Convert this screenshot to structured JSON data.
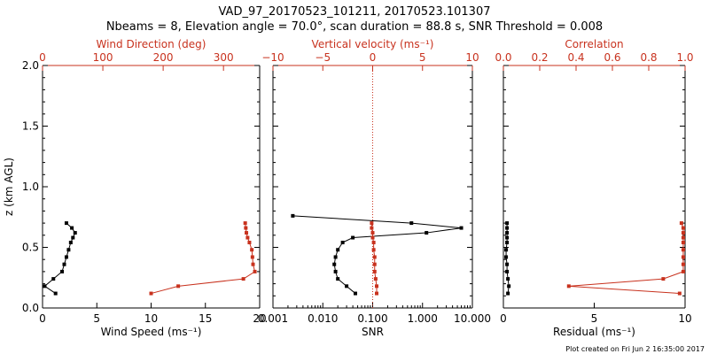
{
  "header": {
    "title": "VAD_97_20170523_101211, 20170523.101307",
    "subtitle": "Nbeams = 8, Elevation angle = 70.0°, scan duration = 88.8 s, SNR Threshold = 0.008"
  },
  "footer": {
    "credit": "Plot created on Fri Jun  2 16:35:00 2017"
  },
  "colors": {
    "black": "#000000",
    "red": "#c8321e",
    "dotted_red": "#c8321e"
  },
  "chart_data": [
    {
      "type": "line",
      "panel": "wind",
      "ylabel": "z (km AGL)",
      "yticks": [
        "0.0",
        "0.5",
        "1.0",
        "1.5",
        "2.0"
      ],
      "ylim": [
        0,
        2.0
      ],
      "bottom_axis": {
        "label": "Wind Speed (ms⁻¹)",
        "range": [
          0,
          20
        ],
        "ticks": [
          "0",
          "5",
          "10",
          "15",
          "20"
        ]
      },
      "top_axis": {
        "label": "Wind Direction (deg)",
        "range": [
          0,
          360
        ],
        "ticks": [
          "0",
          "100",
          "200",
          "300"
        ]
      },
      "series": [
        {
          "axis": "bottom",
          "color": "#000000",
          "x": [
            1.2,
            0.2,
            1.0,
            1.8,
            2.0,
            2.2,
            2.4,
            2.6,
            2.8,
            3.0,
            2.7,
            2.2
          ],
          "y": [
            0.12,
            0.18,
            0.24,
            0.3,
            0.36,
            0.42,
            0.48,
            0.54,
            0.58,
            0.62,
            0.66,
            0.7
          ]
        },
        {
          "axis": "top",
          "color": "#c8321e",
          "x": [
            180,
            225,
            333,
            352,
            349,
            348,
            347,
            343,
            340,
            338,
            337,
            336
          ],
          "y": [
            0.12,
            0.18,
            0.24,
            0.3,
            0.36,
            0.42,
            0.48,
            0.54,
            0.58,
            0.62,
            0.66,
            0.7
          ]
        }
      ]
    },
    {
      "type": "line",
      "panel": "snr",
      "bottom_axis": {
        "label": "SNR",
        "scale": "log",
        "range": [
          0.001,
          10
        ],
        "ticks": [
          "0.001",
          "0.010",
          "0.100",
          "1.000",
          "10.000"
        ]
      },
      "top_axis": {
        "label": "Vertical velocity (ms⁻¹)",
        "range": [
          -10,
          10
        ],
        "ticks": [
          "−10",
          "−5",
          "0",
          "5",
          "10"
        ],
        "zero_line": "dotted"
      },
      "series": [
        {
          "axis": "bottom",
          "color": "#000000",
          "x": [
            0.045,
            0.03,
            0.02,
            0.018,
            0.017,
            0.018,
            0.02,
            0.025,
            0.04,
            1.2,
            6.0,
            0.6,
            0.0025
          ],
          "y": [
            0.12,
            0.18,
            0.24,
            0.3,
            0.36,
            0.42,
            0.48,
            0.54,
            0.58,
            0.62,
            0.66,
            0.7,
            0.76
          ]
        },
        {
          "axis": "top",
          "color": "#c8321e",
          "x": [
            0.4,
            0.4,
            0.3,
            0.2,
            0.2,
            0.2,
            0.1,
            0.1,
            0.0,
            0.0,
            -0.1,
            -0.1
          ],
          "y": [
            0.12,
            0.18,
            0.24,
            0.3,
            0.36,
            0.42,
            0.48,
            0.54,
            0.58,
            0.62,
            0.66,
            0.7
          ]
        }
      ]
    },
    {
      "type": "line",
      "panel": "correlation",
      "bottom_axis": {
        "label": "Residual (ms⁻¹)",
        "range": [
          0,
          10
        ],
        "ticks": [
          "0",
          "5",
          "10"
        ]
      },
      "top_axis": {
        "label": "Correlation",
        "range": [
          0,
          1.0
        ],
        "ticks": [
          "0.0",
          "0.2",
          "0.4",
          "0.6",
          "0.8",
          "1.0"
        ]
      },
      "series": [
        {
          "axis": "bottom",
          "color": "#000000",
          "x": [
            0.25,
            0.3,
            0.25,
            0.2,
            0.2,
            0.15,
            0.15,
            0.2,
            0.2,
            0.2,
            0.2,
            0.2
          ],
          "y": [
            0.12,
            0.18,
            0.24,
            0.3,
            0.36,
            0.42,
            0.48,
            0.54,
            0.58,
            0.62,
            0.66,
            0.7
          ]
        },
        {
          "axis": "top",
          "color": "#c8321e",
          "x": [
            0.97,
            0.36,
            0.88,
            0.99,
            0.99,
            0.99,
            0.99,
            0.99,
            0.99,
            0.99,
            0.99,
            0.98
          ],
          "y": [
            0.12,
            0.18,
            0.24,
            0.3,
            0.36,
            0.42,
            0.48,
            0.54,
            0.58,
            0.62,
            0.66,
            0.7
          ]
        }
      ]
    }
  ]
}
